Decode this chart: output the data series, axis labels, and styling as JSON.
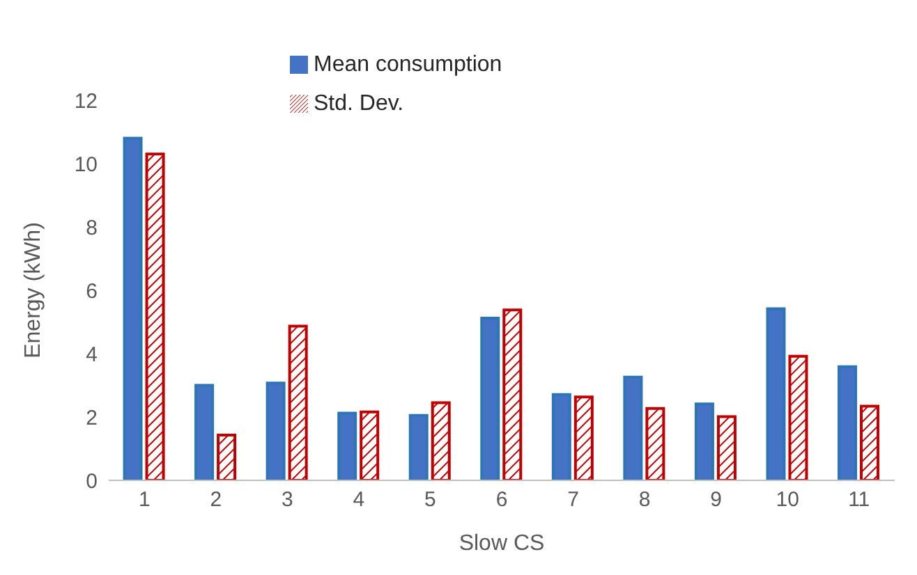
{
  "chart_data": {
    "type": "bar",
    "xlabel": "Slow CS",
    "ylabel": "Energy (kWh)",
    "categories": [
      "1",
      "2",
      "3",
      "4",
      "5",
      "6",
      "7",
      "8",
      "9",
      "10",
      "11"
    ],
    "series": [
      {
        "name": "Mean consumption",
        "color": "#4472c4",
        "values": [
          10.8,
          3.0,
          3.07,
          2.12,
          2.05,
          5.12,
          2.71,
          3.26,
          2.41,
          5.42,
          3.59
        ]
      },
      {
        "name": "Std. Dev.",
        "color": "#c00000",
        "values": [
          10.3,
          1.43,
          4.87,
          2.16,
          2.45,
          5.38,
          2.63,
          2.27,
          2.01,
          3.92,
          2.34
        ]
      }
    ],
    "ylim": [
      0,
      12
    ],
    "yticks": [
      0,
      2,
      4,
      6,
      8,
      10,
      12
    ],
    "legend": "top"
  }
}
